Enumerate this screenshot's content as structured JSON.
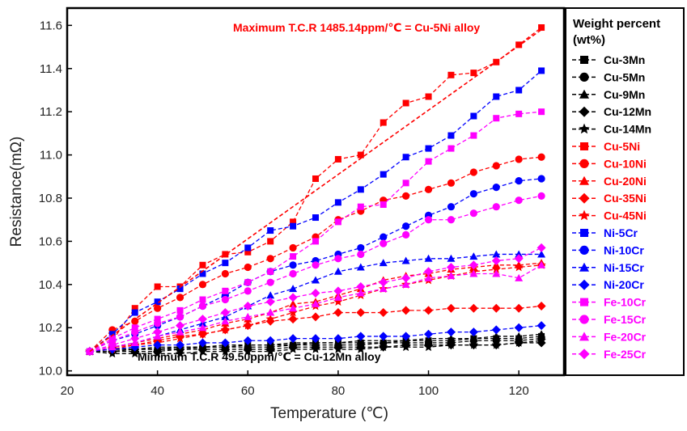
{
  "chart_data": {
    "type": "line",
    "xlabel": "Temperature (℃)",
    "ylabel": "Resistance(mΩ)",
    "xlim": [
      20,
      130
    ],
    "ylim": [
      9.98,
      11.68
    ],
    "xticks": [
      20,
      40,
      60,
      80,
      100,
      120
    ],
    "yticks": [
      10.0,
      10.2,
      10.4,
      10.6,
      10.8,
      11.0,
      11.2,
      11.4,
      11.6
    ],
    "grid": false,
    "legend_position": "right-outside",
    "legend_title": [
      "Weight percent",
      "(wt%)"
    ],
    "annotations": [
      {
        "text": "Maximum T.C.R  1485.14ppm/℃  =  Cu-5Ni alloy",
        "color": "#ff0000"
      },
      {
        "text": "Minimum T.C.R 49.50ppm/℃  =  Cu-12Mn alloy",
        "color": "#000000"
      }
    ],
    "trendline": {
      "from": [
        25,
        10.09
      ],
      "to": [
        125,
        11.58
      ],
      "color": "#ff0000",
      "style": "dashed"
    },
    "x": [
      25,
      30,
      35,
      40,
      45,
      50,
      55,
      60,
      65,
      70,
      75,
      80,
      85,
      90,
      95,
      100,
      105,
      110,
      115,
      120,
      125
    ],
    "series": [
      {
        "name": "Cu-3Mn",
        "color": "#000000",
        "marker": "square",
        "values": [
          10.09,
          10.1,
          10.1,
          10.1,
          10.11,
          10.11,
          10.11,
          10.12,
          10.12,
          10.12,
          10.13,
          10.13,
          10.13,
          10.13,
          10.14,
          10.14,
          10.14,
          10.15,
          10.15,
          10.15,
          10.16
        ]
      },
      {
        "name": "Cu-5Mn",
        "color": "#000000",
        "marker": "circle",
        "values": [
          10.09,
          10.09,
          10.1,
          10.1,
          10.1,
          10.11,
          10.11,
          10.11,
          10.11,
          10.12,
          10.12,
          10.12,
          10.12,
          10.13,
          10.13,
          10.13,
          10.13,
          10.14,
          10.14,
          10.14,
          10.15
        ]
      },
      {
        "name": "Cu-9Mn",
        "color": "#000000",
        "marker": "triangle",
        "values": [
          10.09,
          10.1,
          10.1,
          10.11,
          10.11,
          10.11,
          10.12,
          10.12,
          10.12,
          10.13,
          10.13,
          10.13,
          10.14,
          10.14,
          10.14,
          10.15,
          10.15,
          10.15,
          10.16,
          10.16,
          10.17
        ]
      },
      {
        "name": "Cu-12Mn",
        "color": "#000000",
        "marker": "diamond",
        "values": [
          10.09,
          10.09,
          10.09,
          10.09,
          10.1,
          10.1,
          10.1,
          10.1,
          10.1,
          10.11,
          10.11,
          10.11,
          10.11,
          10.11,
          10.12,
          10.12,
          10.12,
          10.12,
          10.12,
          10.13,
          10.13
        ]
      },
      {
        "name": "Cu-14Mn",
        "color": "#000000",
        "marker": "star",
        "values": [
          10.09,
          10.08,
          10.08,
          10.08,
          10.08,
          10.09,
          10.09,
          10.09,
          10.09,
          10.1,
          10.1,
          10.1,
          10.1,
          10.11,
          10.11,
          10.11,
          10.12,
          10.12,
          10.12,
          10.13,
          10.14
        ]
      },
      {
        "name": "Cu-5Ni",
        "color": "#ff0000",
        "marker": "square",
        "values": [
          10.09,
          10.14,
          10.29,
          10.39,
          10.39,
          10.49,
          10.54,
          10.55,
          10.6,
          10.69,
          10.89,
          10.98,
          11.0,
          11.15,
          11.24,
          11.27,
          11.37,
          11.38,
          11.43,
          11.51,
          11.59
        ]
      },
      {
        "name": "Cu-10Ni",
        "color": "#ff0000",
        "marker": "circle",
        "values": [
          10.09,
          10.19,
          10.23,
          10.29,
          10.34,
          10.4,
          10.45,
          10.48,
          10.52,
          10.57,
          10.62,
          10.7,
          10.74,
          10.79,
          10.81,
          10.84,
          10.87,
          10.92,
          10.95,
          10.98,
          10.99
        ]
      },
      {
        "name": "Cu-20Ni",
        "color": "#ff0000",
        "marker": "triangle",
        "values": [
          10.09,
          10.11,
          10.13,
          10.15,
          10.17,
          10.19,
          10.22,
          10.24,
          10.27,
          10.31,
          10.32,
          10.35,
          10.38,
          10.42,
          10.44,
          10.45,
          10.47,
          10.48,
          10.49,
          10.49,
          10.5
        ]
      },
      {
        "name": "Cu-35Ni",
        "color": "#ff0000",
        "marker": "diamond",
        "values": [
          10.09,
          10.11,
          10.12,
          10.14,
          10.16,
          10.17,
          10.19,
          10.21,
          10.23,
          10.24,
          10.25,
          10.27,
          10.27,
          10.27,
          10.28,
          10.28,
          10.29,
          10.29,
          10.29,
          10.29,
          10.3
        ]
      },
      {
        "name": "Cu-45Ni",
        "color": "#ff0000",
        "marker": "star",
        "values": [
          10.09,
          10.1,
          10.12,
          10.13,
          10.15,
          10.17,
          10.19,
          10.21,
          10.24,
          10.27,
          10.3,
          10.32,
          10.35,
          10.38,
          10.4,
          10.42,
          10.44,
          10.46,
          10.47,
          10.48,
          10.49
        ]
      },
      {
        "name": "Ni-5Cr",
        "color": "#0000ff",
        "marker": "square",
        "values": [
          10.09,
          10.17,
          10.27,
          10.32,
          10.38,
          10.45,
          10.5,
          10.57,
          10.65,
          10.67,
          10.71,
          10.78,
          10.84,
          10.91,
          10.99,
          11.03,
          11.09,
          11.18,
          11.27,
          11.3,
          11.39
        ]
      },
      {
        "name": "Ni-10Cr",
        "color": "#0000ff",
        "marker": "circle",
        "values": [
          10.09,
          10.14,
          10.17,
          10.21,
          10.25,
          10.3,
          10.35,
          10.41,
          10.46,
          10.49,
          10.51,
          10.54,
          10.57,
          10.62,
          10.67,
          10.72,
          10.76,
          10.82,
          10.85,
          10.88,
          10.89
        ]
      },
      {
        "name": "Ni-15Cr",
        "color": "#0000ff",
        "marker": "triangle",
        "values": [
          10.09,
          10.11,
          10.13,
          10.16,
          10.19,
          10.22,
          10.25,
          10.3,
          10.35,
          10.38,
          10.42,
          10.46,
          10.48,
          10.5,
          10.51,
          10.52,
          10.52,
          10.53,
          10.54,
          10.54,
          10.54
        ]
      },
      {
        "name": "Ni-20Cr",
        "color": "#0000ff",
        "marker": "diamond",
        "values": [
          10.09,
          10.1,
          10.11,
          10.12,
          10.12,
          10.13,
          10.13,
          10.14,
          10.14,
          10.15,
          10.15,
          10.15,
          10.16,
          10.16,
          10.16,
          10.17,
          10.18,
          10.18,
          10.19,
          10.2,
          10.21
        ]
      },
      {
        "name": "Fe-10Cr",
        "color": "#ff00ff",
        "marker": "square",
        "values": [
          10.09,
          10.15,
          10.2,
          10.24,
          10.28,
          10.33,
          10.37,
          10.41,
          10.46,
          10.53,
          10.6,
          10.69,
          10.76,
          10.77,
          10.87,
          10.97,
          11.03,
          11.09,
          11.17,
          11.19,
          11.2
        ]
      },
      {
        "name": "Fe-15Cr",
        "color": "#ff00ff",
        "marker": "circle",
        "values": [
          10.09,
          10.14,
          10.18,
          10.22,
          10.25,
          10.3,
          10.33,
          10.37,
          10.41,
          10.45,
          10.49,
          10.52,
          10.54,
          10.59,
          10.63,
          10.7,
          10.7,
          10.73,
          10.76,
          10.79,
          10.81
        ]
      },
      {
        "name": "Fe-20Cr",
        "color": "#ff00ff",
        "marker": "triangle",
        "values": [
          10.09,
          10.11,
          10.13,
          10.16,
          10.18,
          10.2,
          10.23,
          10.25,
          10.27,
          10.29,
          10.31,
          10.34,
          10.36,
          10.38,
          10.4,
          10.43,
          10.44,
          10.45,
          10.45,
          10.43,
          10.49
        ]
      },
      {
        "name": "Fe-25Cr",
        "color": "#ff00ff",
        "marker": "diamond",
        "values": [
          10.09,
          10.12,
          10.15,
          10.18,
          10.21,
          10.24,
          10.27,
          10.3,
          10.32,
          10.34,
          10.36,
          10.37,
          10.39,
          10.41,
          10.43,
          10.46,
          10.48,
          10.49,
          10.51,
          10.52,
          10.57
        ]
      }
    ]
  }
}
